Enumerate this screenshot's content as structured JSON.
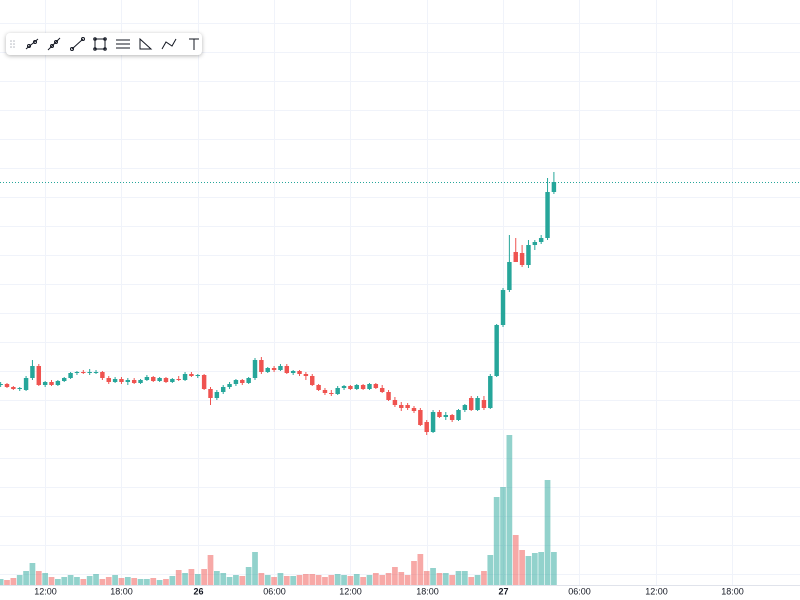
{
  "chart_data": {
    "type": "candlestick",
    "xlim": [
      -0.1,
      125.7
    ],
    "xticks": [
      {
        "value": 7,
        "label": "12:00"
      },
      {
        "value": 19,
        "label": "18:00"
      },
      {
        "value": 31,
        "label": "26"
      },
      {
        "value": 43,
        "label": "06:00"
      },
      {
        "value": 55,
        "label": "12:00"
      },
      {
        "value": 67,
        "label": "18:00"
      },
      {
        "value": 79,
        "label": "27"
      },
      {
        "value": 91,
        "label": "06:00"
      },
      {
        "value": 103,
        "label": "12:00"
      },
      {
        "value": 115,
        "label": "18:00"
      }
    ],
    "ylim": [
      0,
      60
    ],
    "volume_lim": [
      0,
      585
    ],
    "grid": true,
    "up_color": "#26a69a",
    "down_color": "#ef5350",
    "open": [
      21.5,
      21.6,
      21.3,
      21.1,
      21.0,
      22.2,
      23.4,
      21.5,
      21.8,
      21.5,
      21.9,
      22.2,
      22.7,
      22.8,
      22.7,
      22.8,
      22.8,
      22.2,
      21.8,
      22.1,
      21.8,
      22.0,
      21.7,
      22.0,
      22.3,
      21.9,
      22.2,
      21.8,
      22.1,
      22.0,
      22.6,
      22.4,
      22.5,
      21.1,
      20.2,
      20.8,
      21.3,
      21.6,
      22.0,
      21.7,
      22.2,
      24.0,
      22.8,
      23.2,
      23.0,
      23.4,
      22.7,
      22.9,
      22.6,
      22.4,
      21.5,
      21.0,
      20.7,
      20.6,
      21.2,
      21.4,
      21.1,
      21.5,
      21.1,
      21.6,
      21.2,
      20.8,
      20.0,
      19.5,
      19.5,
      19.2,
      19.0,
      17.8,
      16.8,
      18.8,
      18.3,
      18.5,
      18.0,
      19.0,
      20.2,
      19.0,
      20.0,
      19.2,
      22.4,
      27.5,
      31.0,
      34.8,
      34.7,
      33.5,
      35.5,
      35.8,
      36.2,
      40.8
    ],
    "high": [
      21.8,
      21.7,
      21.4,
      21.3,
      22.4,
      24.0,
      23.6,
      21.9,
      22.0,
      22.0,
      22.3,
      22.8,
      22.9,
      23.0,
      23.1,
      23.0,
      22.9,
      22.4,
      22.3,
      22.3,
      22.2,
      22.2,
      22.1,
      22.5,
      22.4,
      22.3,
      22.3,
      22.2,
      22.4,
      22.8,
      22.8,
      22.6,
      22.6,
      21.3,
      21.0,
      21.5,
      21.8,
      22.1,
      22.1,
      22.3,
      24.2,
      24.3,
      23.3,
      23.4,
      23.6,
      23.6,
      23.0,
      23.0,
      22.8,
      22.6,
      21.6,
      21.2,
      21.0,
      21.4,
      21.5,
      21.5,
      21.6,
      21.6,
      21.7,
      21.7,
      21.5,
      21.0,
      20.3,
      19.8,
      19.7,
      19.4,
      19.2,
      18.0,
      19.0,
      19.0,
      18.8,
      18.6,
      19.1,
      19.6,
      20.4,
      20.4,
      20.4,
      22.6,
      27.6,
      31.2,
      36.5,
      36.2,
      35.5,
      36.0,
      36.0,
      36.5,
      42.2,
      42.8
    ],
    "low": [
      21.3,
      21.2,
      21.0,
      20.9,
      20.9,
      22.0,
      21.4,
      21.3,
      21.4,
      21.4,
      21.8,
      22.1,
      22.5,
      22.6,
      22.5,
      22.6,
      22.0,
      21.6,
      21.7,
      21.6,
      21.5,
      21.6,
      21.6,
      21.9,
      21.8,
      21.8,
      21.7,
      21.7,
      21.9,
      21.9,
      22.3,
      22.2,
      21.0,
      19.5,
      20.0,
      20.6,
      21.1,
      21.4,
      21.5,
      21.6,
      22.0,
      22.6,
      22.7,
      22.8,
      22.9,
      22.6,
      22.5,
      22.4,
      22.0,
      21.4,
      20.9,
      20.5,
      20.4,
      20.5,
      21.0,
      21.0,
      21.0,
      21.0,
      21.0,
      21.1,
      20.7,
      19.9,
      19.3,
      18.9,
      19.0,
      18.7,
      17.4,
      16.5,
      16.7,
      18.2,
      18.0,
      17.8,
      17.9,
      18.8,
      18.9,
      18.9,
      19.0,
      19.1,
      22.3,
      27.3,
      30.8,
      33.8,
      33.3,
      33.2,
      35.0,
      35.6,
      36.0,
      40.6
    ],
    "close": [
      21.6,
      21.3,
      21.1,
      21.2,
      22.2,
      23.4,
      21.5,
      21.8,
      21.5,
      21.9,
      22.2,
      22.7,
      22.8,
      22.7,
      22.8,
      22.8,
      22.2,
      21.8,
      22.1,
      21.8,
      22.0,
      21.7,
      22.0,
      22.3,
      21.9,
      22.2,
      21.8,
      22.1,
      22.0,
      22.6,
      22.4,
      22.5,
      21.1,
      20.2,
      20.8,
      21.3,
      21.6,
      22.0,
      21.7,
      22.2,
      24.0,
      22.8,
      23.2,
      23.0,
      23.4,
      22.7,
      22.9,
      22.6,
      22.4,
      21.5,
      21.0,
      20.7,
      20.6,
      21.2,
      21.4,
      21.1,
      21.5,
      21.1,
      21.6,
      21.2,
      20.8,
      20.0,
      19.5,
      19.2,
      19.2,
      18.9,
      17.5,
      16.8,
      18.8,
      18.3,
      18.5,
      18.0,
      19.0,
      19.5,
      19.0,
      20.2,
      19.2,
      22.4,
      27.5,
      31.0,
      33.8,
      33.8,
      33.5,
      35.5,
      35.8,
      36.2,
      40.8,
      41.8
    ],
    "volume": [
      6,
      5,
      7,
      10,
      14,
      22,
      14,
      12,
      8,
      6,
      8,
      10,
      8,
      6,
      9,
      11,
      6,
      8,
      10,
      7,
      8,
      7,
      6,
      6,
      7,
      5,
      6,
      9,
      15,
      12,
      16,
      11,
      16,
      30,
      14,
      12,
      8,
      10,
      9,
      18,
      33,
      12,
      10,
      8,
      12,
      9,
      9,
      10,
      11,
      11,
      10,
      8,
      10,
      11,
      10,
      9,
      11,
      8,
      10,
      12,
      10,
      12,
      18,
      13,
      10,
      24,
      31,
      14,
      17,
      12,
      12,
      10,
      14,
      14,
      8,
      10,
      14,
      30,
      88,
      98,
      150,
      50,
      35,
      29,
      32,
      33,
      105,
      33
    ]
  }
}
